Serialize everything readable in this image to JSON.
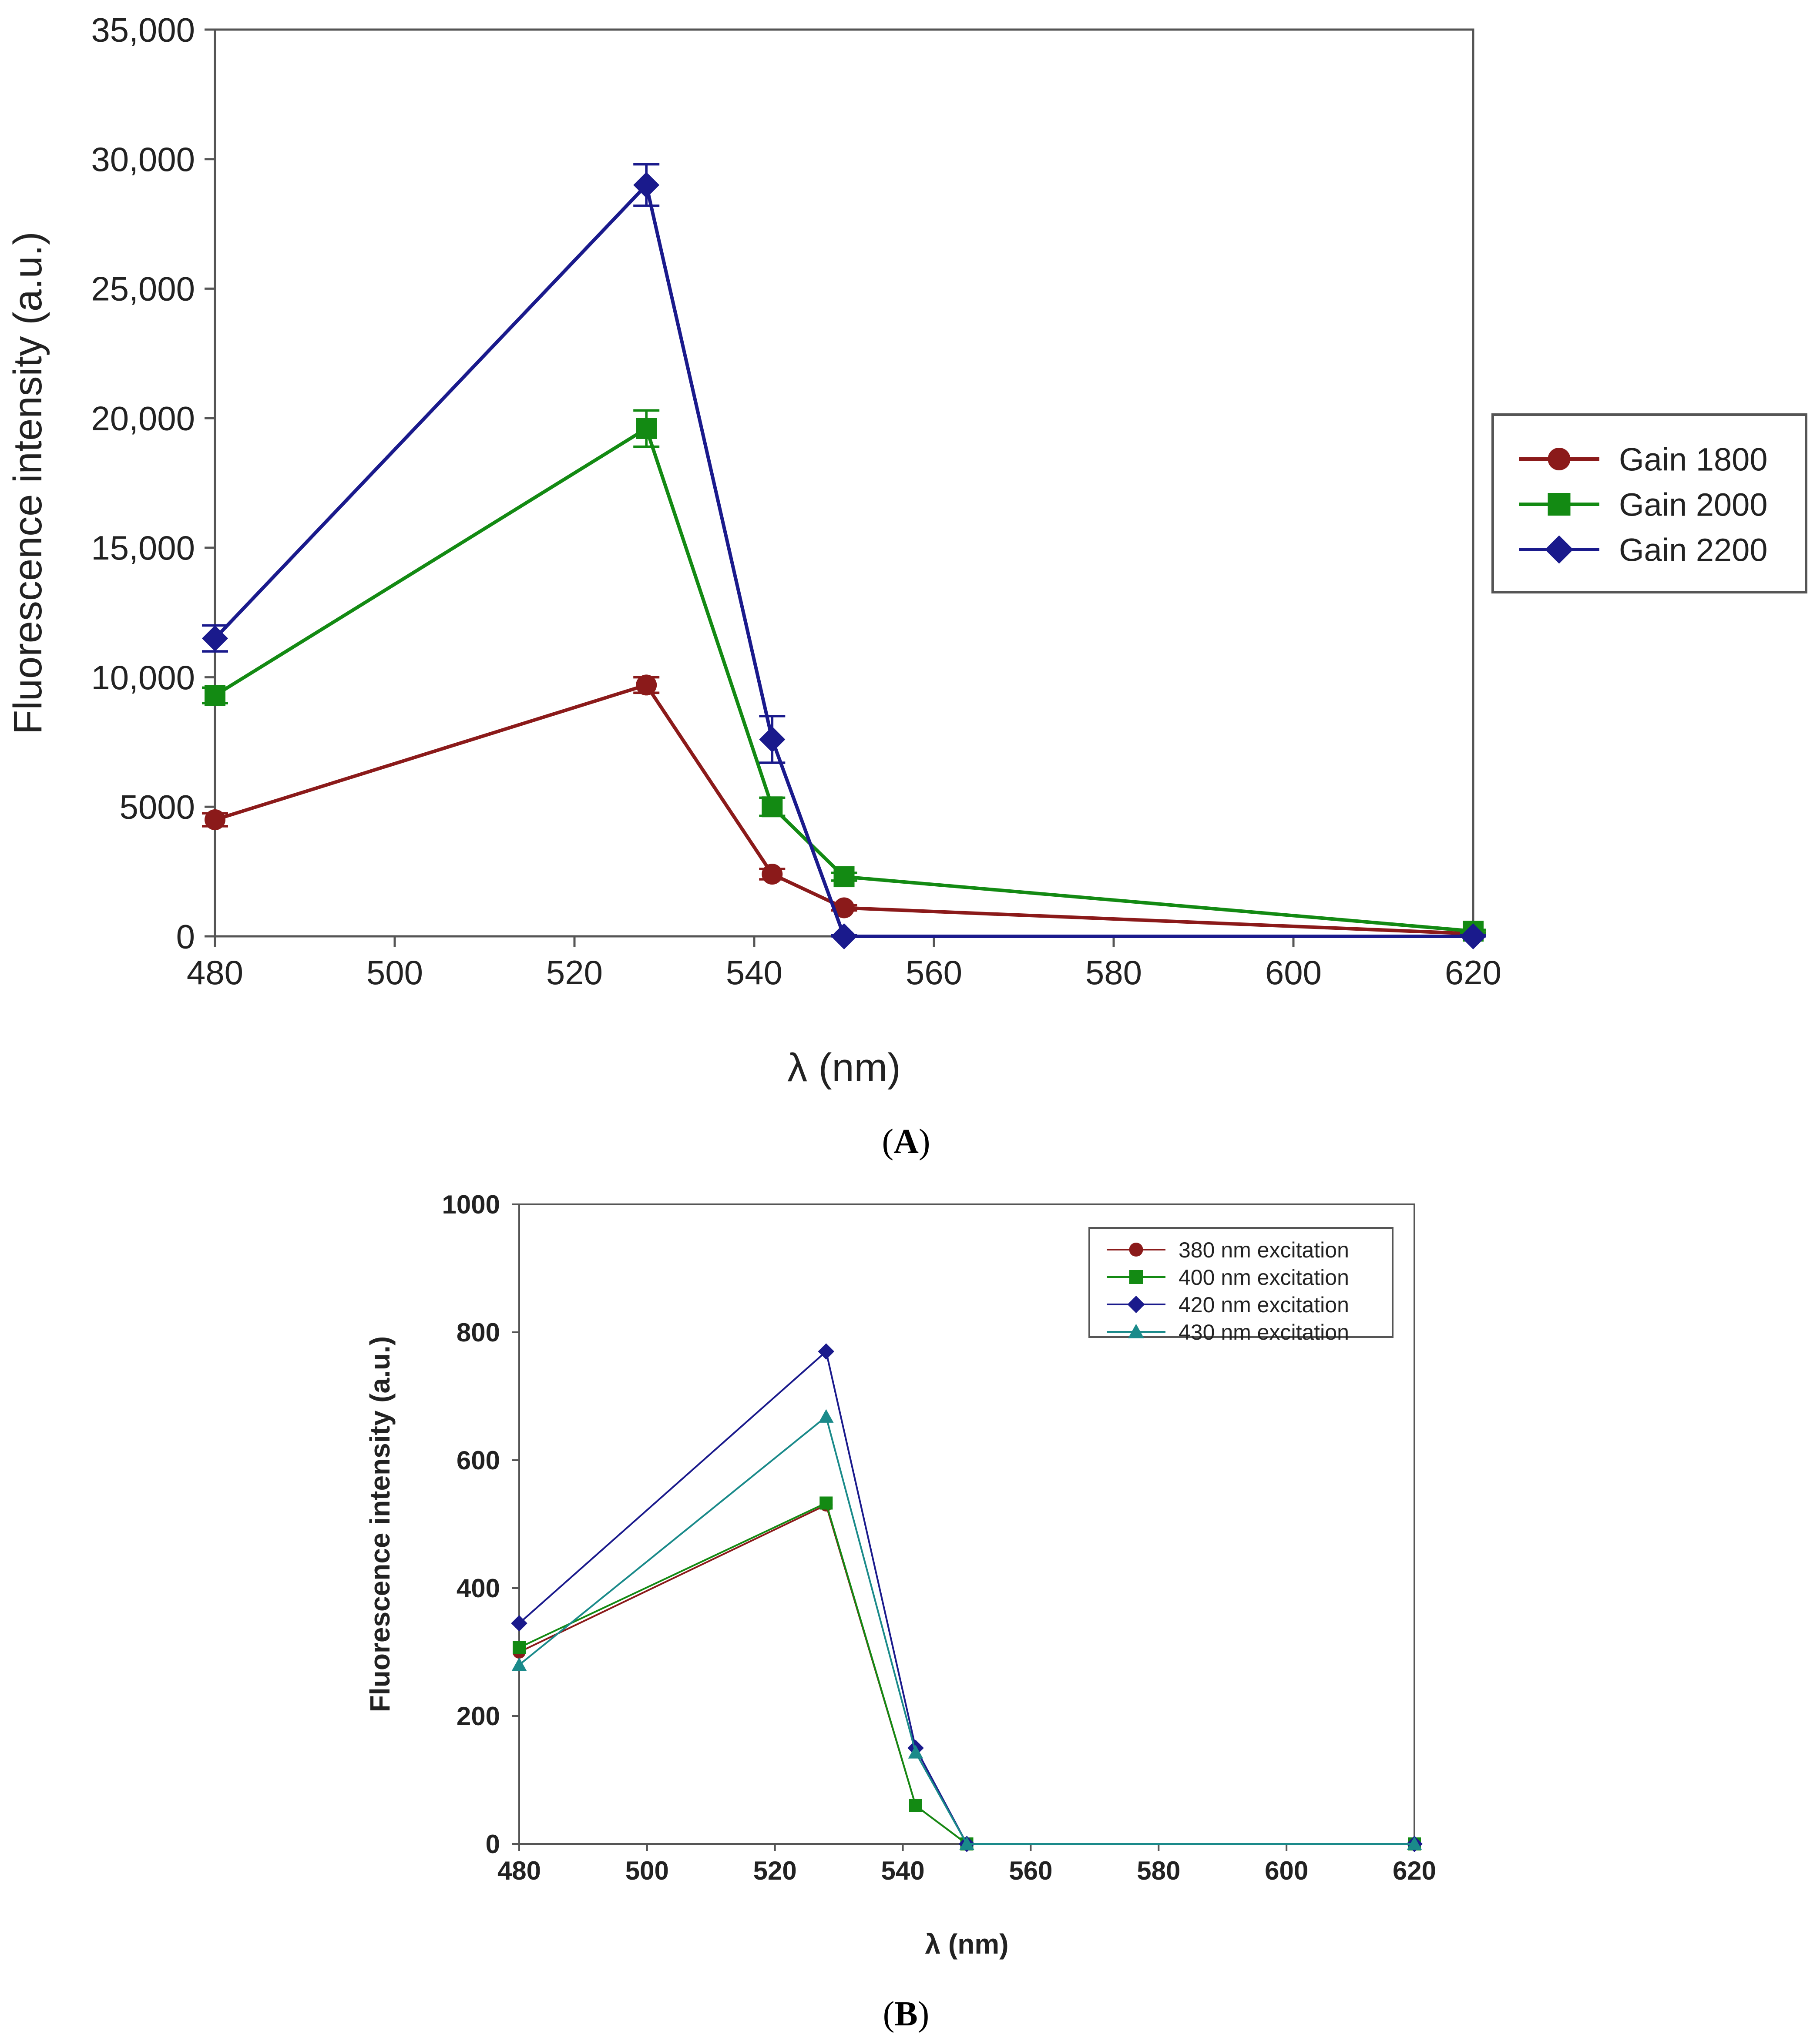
{
  "chart_data": [
    {
      "type": "line",
      "panel_label": "A",
      "title": "",
      "xlabel": "λ (nm)",
      "ylabel": "Fluorescence intensity (a.u.)",
      "xlim": [
        480,
        620
      ],
      "ylim": [
        0,
        35000
      ],
      "xticks": [
        480,
        500,
        520,
        540,
        560,
        580,
        600,
        620
      ],
      "xtick_labels": [
        "480",
        "500",
        "520",
        "540",
        "560",
        "580",
        "600",
        "620"
      ],
      "yticks": [
        0,
        5000,
        10000,
        15000,
        20000,
        25000,
        30000,
        35000
      ],
      "ytick_labels": [
        "0",
        "5000",
        "10,000",
        "15,000",
        "20,000",
        "25,000",
        "30,000",
        "35,000"
      ],
      "grid": false,
      "legend_position": "right",
      "x": [
        480,
        528,
        542,
        550,
        620
      ],
      "series": [
        {
          "name": "Gain 1800",
          "color": "#8b1a1a",
          "marker": "circle",
          "values": [
            4500,
            9700,
            2400,
            1100,
            100
          ],
          "errors": [
            250,
            300,
            200,
            100,
            50
          ]
        },
        {
          "name": "Gain 2000",
          "color": "#138a13",
          "marker": "square",
          "values": [
            9300,
            19600,
            5000,
            2300,
            200
          ],
          "errors": [
            300,
            700,
            350,
            150,
            50
          ]
        },
        {
          "name": "Gain 2200",
          "color": "#1a1a8c",
          "marker": "diamond",
          "values": [
            11500,
            29000,
            7600,
            0,
            0
          ],
          "errors": [
            500,
            800,
            900,
            50,
            50
          ]
        }
      ]
    },
    {
      "type": "line",
      "panel_label": "B",
      "title": "",
      "xlabel": "λ (nm)",
      "ylabel": "Fluorescence intensity (a.u.)",
      "xlim": [
        480,
        620
      ],
      "ylim": [
        0,
        1000
      ],
      "xticks": [
        480,
        500,
        520,
        540,
        560,
        580,
        600,
        620
      ],
      "xtick_labels": [
        "480",
        "500",
        "520",
        "540",
        "560",
        "580",
        "600",
        "620"
      ],
      "yticks": [
        0,
        200,
        400,
        600,
        800,
        1000
      ],
      "ytick_labels": [
        "0",
        "200",
        "400",
        "600",
        "800",
        "1000"
      ],
      "grid": false,
      "legend_position": "top-right",
      "x": [
        480,
        528,
        542,
        550,
        620
      ],
      "series": [
        {
          "name": "380 nm excitation",
          "color": "#8b1a1a",
          "marker": "circle",
          "values": [
            300,
            530,
            60,
            0,
            0
          ]
        },
        {
          "name": "400 nm excitation",
          "color": "#138a13",
          "marker": "square",
          "values": [
            307,
            533,
            60,
            0,
            0
          ]
        },
        {
          "name": "420 nm excitation",
          "color": "#1a1a8c",
          "marker": "diamond",
          "values": [
            345,
            770,
            150,
            0,
            0
          ]
        },
        {
          "name": "430 nm excitation",
          "color": "#1a8a8a",
          "marker": "triangle",
          "values": [
            280,
            668,
            143,
            0,
            0
          ]
        }
      ]
    }
  ]
}
